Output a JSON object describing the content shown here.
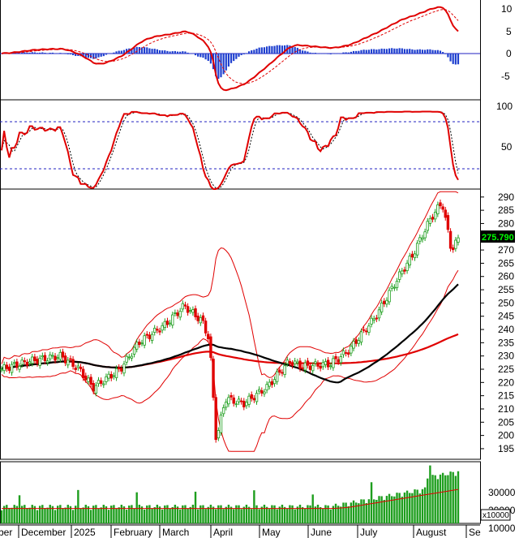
{
  "chart_data": {
    "type": "candlestick",
    "x_labels": [
      "ber",
      "December",
      "2025",
      "February",
      "March",
      "April",
      "May",
      "June",
      "July",
      "August",
      "Se"
    ],
    "panels": {
      "macd": {
        "yticks": [
          "10",
          "5",
          "0",
          "-5"
        ],
        "ylim": [
          -10,
          12
        ],
        "hist_colors": {
          "positive": "#1e3fcf",
          "negative": "#1e3fcf"
        },
        "line_color": "#e00000"
      },
      "stochastic": {
        "yticks": [
          "100",
          "50"
        ],
        "ylim": [
          0,
          115
        ],
        "levels": [
          80,
          20
        ]
      },
      "price": {
        "yticks": [
          "290",
          "285",
          "280",
          "275",
          "270",
          "265",
          "260",
          "255",
          "250",
          "245",
          "240",
          "235",
          "230",
          "225",
          "220",
          "215",
          "210",
          "205",
          "200",
          "195"
        ],
        "ylim": [
          191,
          293
        ],
        "last_price": "275.790",
        "ma_short_color": "#000000",
        "ma_long_color": "#e00000",
        "band_color": "#e00000"
      },
      "volume": {
        "yticks": [
          "30000",
          "20000",
          "10000"
        ],
        "ylim": [
          0,
          33000
        ],
        "unit": "x10000",
        "bar_color": "#1e9e1e"
      }
    }
  },
  "colors": {
    "up": "#1e9e1e",
    "down": "#e00000",
    "grid": "#2020c0"
  }
}
